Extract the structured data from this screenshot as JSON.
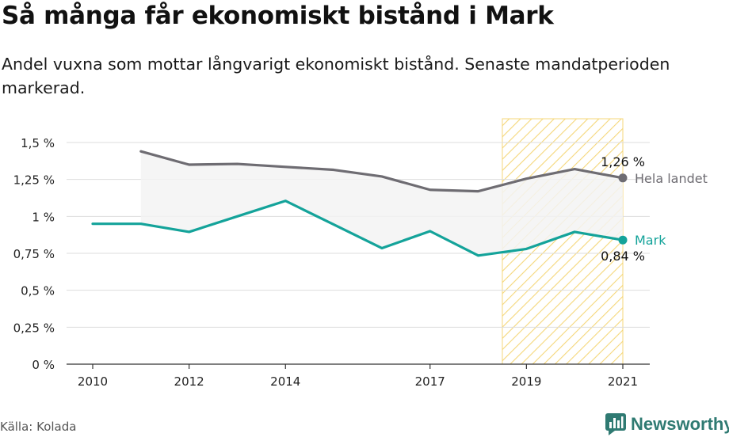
{
  "header": {
    "title": "Så många får ekonomiskt bistånd i Mark",
    "subtitle": "Andel vuxna som mottar långvarigt ekonomiskt bistånd. Senaste mandatperioden markerad."
  },
  "footer": {
    "source": "Källa: Kolada",
    "brand": "Newsworthy"
  },
  "colors": {
    "national": "#6e6c72",
    "local": "#14a39a",
    "highlight": "#f5d77a",
    "grid": "#dddddd",
    "fill": "#f3f3f3",
    "brand": "#2f7a72"
  },
  "chart_data": {
    "type": "line",
    "x_ticks": [
      2010,
      2012,
      2014,
      2017,
      2019,
      2021
    ],
    "y_ticks": [
      {
        "value": 0,
        "label": "0 %"
      },
      {
        "value": 0.25,
        "label": "0,25 %"
      },
      {
        "value": 0.5,
        "label": "0,5 %"
      },
      {
        "value": 0.75,
        "label": "0,75 %"
      },
      {
        "value": 1,
        "label": "1 %"
      },
      {
        "value": 1.25,
        "label": "1,25 %"
      },
      {
        "value": 1.5,
        "label": "1,5 %"
      }
    ],
    "xlim": [
      2010,
      2021
    ],
    "ylim": [
      0,
      1.5
    ],
    "highlight_range": [
      2018.5,
      2021
    ],
    "grid": true,
    "series": [
      {
        "name": "Hela landet",
        "color": "#6e6c72",
        "end_label": "1,26 %",
        "x": [
          2011,
          2012,
          2013,
          2014,
          2015,
          2016,
          2017,
          2018,
          2019,
          2020,
          2021
        ],
        "values": [
          1.44,
          1.35,
          1.355,
          1.335,
          1.315,
          1.27,
          1.18,
          1.17,
          1.255,
          1.32,
          1.26
        ]
      },
      {
        "name": "Mark",
        "color": "#14a39a",
        "end_label": "0,84 %",
        "x": [
          2010,
          2011,
          2012,
          2013,
          2014,
          2015,
          2016,
          2017,
          2018,
          2019,
          2020,
          2021
        ],
        "values": [
          0.95,
          0.95,
          0.895,
          1.0,
          1.105,
          0.945,
          0.785,
          0.9,
          0.735,
          0.78,
          0.895,
          0.84
        ]
      }
    ]
  }
}
